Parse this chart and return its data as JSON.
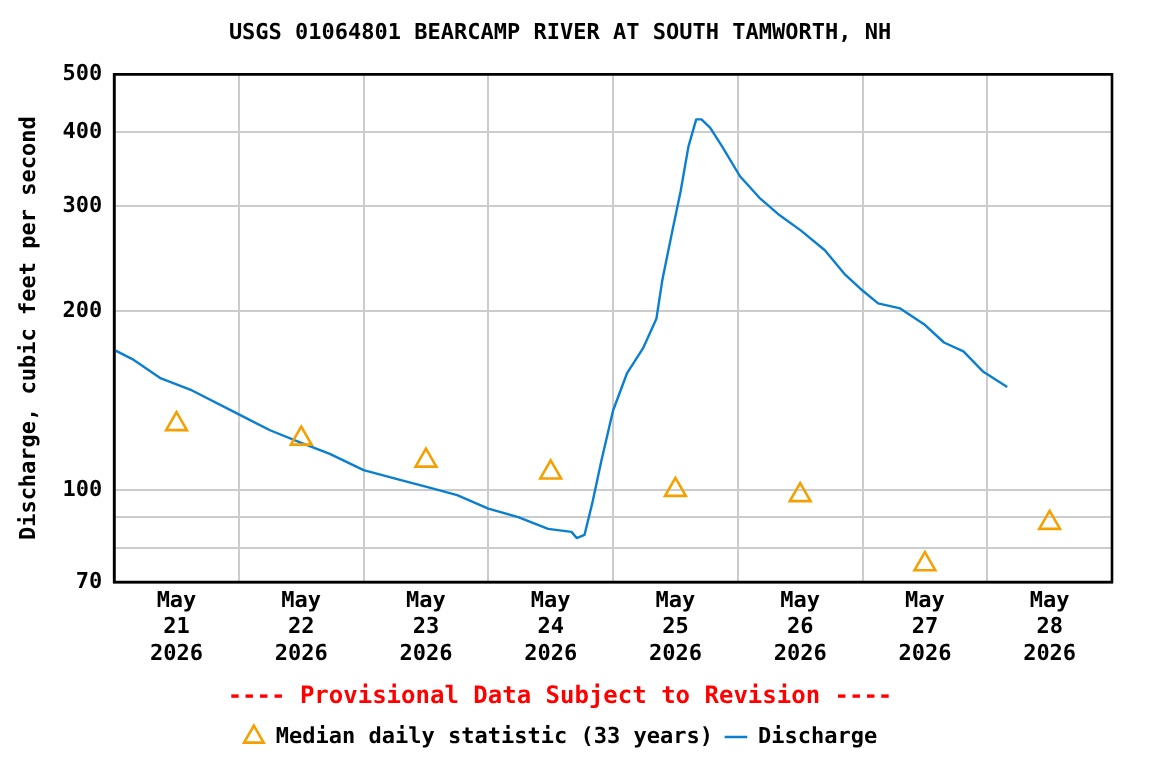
{
  "chart_data": {
    "type": "line",
    "title": "USGS 01064801 BEARCAMP RIVER AT SOUTH TAMWORTH, NH",
    "ylabel": "Discharge, cubic feet per second",
    "annotations": [
      "---- Provisional Data Subject to Revision ----"
    ],
    "log": "y",
    "grid": true,
    "legend": "bottom",
    "xlim": [
      "2026-05-21T00:00",
      "2026-05-29T00:00"
    ],
    "xticks": [
      {
        "value": "2026-05-21T12:00",
        "label": "May 21 2026"
      },
      {
        "value": "2026-05-22T00:00",
        "label": null
      },
      {
        "value": "2026-05-22T12:00",
        "label": "May 22 2026"
      },
      {
        "value": "2026-05-23T00:00",
        "label": null
      },
      {
        "value": "2026-05-23T12:00",
        "label": "May 23 2026"
      },
      {
        "value": "2026-05-24T00:00",
        "label": null
      },
      {
        "value": "2026-05-24T12:00",
        "label": "May 24 2026"
      },
      {
        "value": "2026-05-25T00:00",
        "label": null
      },
      {
        "value": "2026-05-25T12:00",
        "label": "May 25 2026"
      },
      {
        "value": "2026-05-26T00:00",
        "label": null
      },
      {
        "value": "2026-05-26T12:00",
        "label": "May 26 2026"
      },
      {
        "value": "2026-05-27T00:00",
        "label": null
      },
      {
        "value": "2026-05-27T12:00",
        "label": "May 27 2026"
      },
      {
        "value": "2026-05-28T00:00",
        "label": null
      },
      {
        "value": "2026-05-28T12:00",
        "label": "May 28 2026"
      }
    ],
    "ylim": [
      70,
      500
    ],
    "yticks": [
      70,
      {
        "value": 80,
        "label": null
      },
      {
        "value": 90,
        "label": null
      },
      100,
      200,
      300,
      400,
      500
    ],
    "series": [
      {
        "name": "Median daily statistic (33 years)",
        "type": "scatter",
        "marker": "triangle",
        "color": "#f5a000",
        "x": [
          "2026-05-21T12:00",
          "2026-05-22T12:00",
          "2026-05-23T12:00",
          "2026-05-24T12:00",
          "2026-05-25T12:00",
          "2026-05-26T12:00",
          "2026-05-27T12:00",
          "2026-05-28T12:00"
        ],
        "values": [
          129,
          122,
          112,
          107,
          100,
          98,
          75,
          88
        ]
      },
      {
        "name": "Discharge",
        "type": "line",
        "marker": "none",
        "color": "#0a7fd0",
        "x": [
          "2026-05-21T00:00",
          "2026-05-21T03:30",
          "2026-05-21T09:00",
          "2026-05-21T15:00",
          "2026-05-22T00:00",
          "2026-05-22T06:00",
          "2026-05-22T12:00",
          "2026-05-22T17:30",
          "2026-05-23T00:00",
          "2026-05-23T07:00",
          "2026-05-23T12:30",
          "2026-05-23T18:00",
          "2026-05-24T00:00",
          "2026-05-24T05:45",
          "2026-05-24T11:30",
          "2026-05-24T16:00",
          "2026-05-24T17:00",
          "2026-05-24T18:30",
          "2026-05-24T20:00",
          "2026-05-24T21:45",
          "2026-05-25T00:00",
          "2026-05-25T02:40",
          "2026-05-25T05:45",
          "2026-05-25T08:20",
          "2026-05-25T09:30",
          "2026-05-25T11:25",
          "2026-05-25T13:00",
          "2026-05-25T14:30",
          "2026-05-25T16:00",
          "2026-05-25T17:00",
          "2026-05-25T18:40",
          "2026-05-25T21:00",
          "2026-05-26T00:25",
          "2026-05-26T04:10",
          "2026-05-26T08:00",
          "2026-05-26T12:10",
          "2026-05-26T16:45",
          "2026-05-26T20:30",
          "2026-05-26T23:35",
          "2026-05-27T03:00",
          "2026-05-27T07:15",
          "2026-05-27T11:50",
          "2026-05-27T15:40",
          "2026-05-27T19:25",
          "2026-05-27T23:15",
          "2026-05-28T03:50"
        ],
        "values": [
          172,
          166,
          154,
          147,
          134,
          126,
          120,
          115,
          108,
          104,
          101,
          98,
          93,
          90,
          86,
          85,
          83,
          84,
          95,
          112,
          136,
          157,
          173,
          194,
          226,
          273,
          318,
          378,
          420,
          420,
          407,
          378,
          337,
          310,
          290,
          273,
          253,
          231,
          218,
          206,
          202,
          190,
          177,
          171,
          158,
          149
        ]
      }
    ]
  }
}
